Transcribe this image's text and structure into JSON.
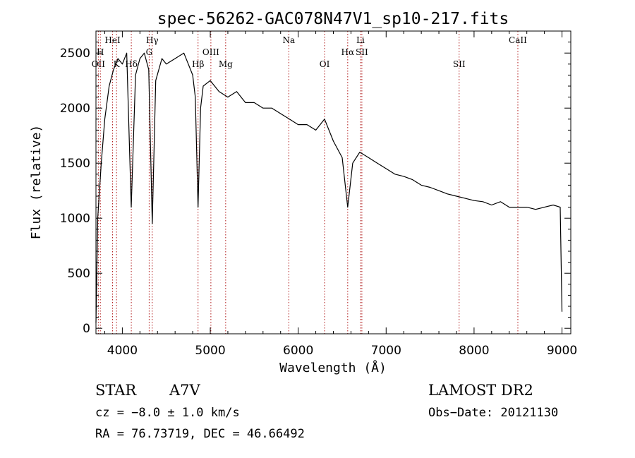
{
  "chart_data": {
    "type": "line",
    "title": "spec-56262-GAC078N47V1_sp10-217.fits",
    "xlabel": "Wavelength (Å)",
    "ylabel": "Flux (relative)",
    "xlim": [
      3700,
      9100
    ],
    "ylim": [
      -50,
      2700
    ],
    "x_ticks": [
      4000,
      5000,
      6000,
      7000,
      8000,
      9000
    ],
    "y_ticks": [
      0,
      500,
      1000,
      1500,
      2000,
      2500
    ],
    "grid": false,
    "line_color": "#000000",
    "marker_color": "#b01818",
    "spectrum": {
      "x": [
        3700,
        3720,
        3760,
        3800,
        3850,
        3900,
        3950,
        4000,
        4050,
        4101,
        4150,
        4200,
        4250,
        4300,
        4340,
        4380,
        4450,
        4500,
        4600,
        4700,
        4750,
        4800,
        4830,
        4861,
        4890,
        4920,
        5000,
        5100,
        5200,
        5300,
        5400,
        5500,
        5600,
        5700,
        5800,
        5900,
        6000,
        6100,
        6200,
        6300,
        6400,
        6500,
        6563,
        6620,
        6700,
        6800,
        6900,
        7000,
        7100,
        7200,
        7300,
        7400,
        7500,
        7600,
        7700,
        7800,
        7900,
        8000,
        8100,
        8200,
        8300,
        8400,
        8500,
        8600,
        8700,
        8800,
        8900,
        8980,
        9000
      ],
      "y": [
        50,
        1000,
        1500,
        1900,
        2200,
        2350,
        2450,
        2400,
        2500,
        1100,
        2300,
        2450,
        2500,
        2350,
        950,
        2250,
        2450,
        2400,
        2450,
        2500,
        2400,
        2300,
        2100,
        1100,
        2000,
        2200,
        2250,
        2150,
        2100,
        2150,
        2050,
        2050,
        2000,
        2000,
        1950,
        1900,
        1850,
        1850,
        1800,
        1900,
        1700,
        1550,
        1100,
        1500,
        1600,
        1550,
        1500,
        1450,
        1400,
        1380,
        1350,
        1300,
        1280,
        1250,
        1220,
        1200,
        1180,
        1160,
        1150,
        1120,
        1150,
        1100,
        1100,
        1100,
        1080,
        1100,
        1120,
        1100,
        150
      ]
    },
    "lines": [
      {
        "label": "OII",
        "x": 3727,
        "row": 3
      },
      {
        "label": "H",
        "x": 3750,
        "row": 2
      },
      {
        "label": "HeI",
        "x": 3889,
        "row": 1
      },
      {
        "label": "K",
        "x": 3934,
        "row": 3
      },
      {
        "label": "Hδ",
        "x": 4102,
        "row": 3
      },
      {
        "label": "Hγ",
        "x": 4340,
        "row": 1
      },
      {
        "label": "G",
        "x": 4305,
        "row": 2
      },
      {
        "label": "Mg",
        "x": 5175,
        "row": 3
      },
      {
        "label": "OIII",
        "x": 5007,
        "row": 2
      },
      {
        "label": "Hβ",
        "x": 4861,
        "row": 3
      },
      {
        "label": "Na",
        "x": 5893,
        "row": 1
      },
      {
        "label": "OI",
        "x": 6300,
        "row": 3
      },
      {
        "label": "Hα",
        "x": 6563,
        "row": 2
      },
      {
        "label": "SII",
        "x": 6724,
        "row": 2
      },
      {
        "label": "Li",
        "x": 6708,
        "row": 1
      },
      {
        "label": "SII",
        "x": 7830,
        "row": 3
      },
      {
        "label": "CaII",
        "x": 8498,
        "row": 1
      }
    ]
  },
  "info": {
    "class_label": "STAR",
    "subclass": "A7V",
    "survey": "LAMOST DR2",
    "cz": "cz = −8.0 ± 1.0 km/s",
    "obs_date": "Obs−Date: 20121130",
    "radec": "RA =  76.73719, DEC =  46.66492"
  }
}
